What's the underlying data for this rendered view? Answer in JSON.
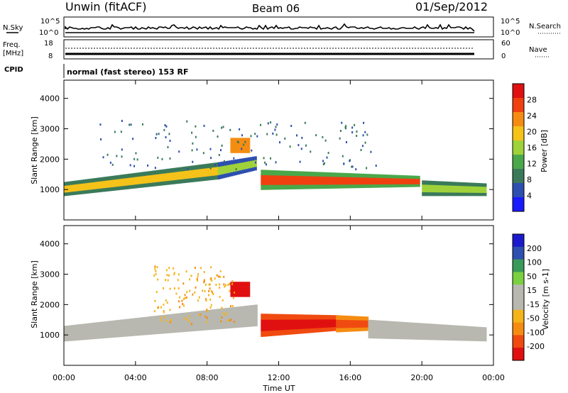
{
  "header": {
    "station": "Unwin (fitACF)",
    "beam": "Beam 06",
    "date": "01/Sep/2012"
  },
  "panels": {
    "nsky_label": "N.Sky",
    "nsky_ticks": [
      "10^5",
      "10^0"
    ],
    "nsearch_label": "N.Search",
    "nsearch_ticks": [
      "10^5",
      "10^0"
    ],
    "freq_label": "Freq.",
    "freq_unit": "[MHz]",
    "freq_ticks": [
      "18",
      "8"
    ],
    "nave_label": "Nave",
    "nave_ticks": [
      "60",
      "0"
    ],
    "cpid_label": "CPID",
    "cpid_text": "normal (fast stereo) 153 RF"
  },
  "colors": {
    "power_scale": [
      "#1a1aff",
      "#2d4fb0",
      "#3a7a5a",
      "#4aa84a",
      "#9fd23a",
      "#f5c21a",
      "#f58c12",
      "#f04010",
      "#e01010"
    ],
    "velocity_scale": [
      "#e01010",
      "#f04a10",
      "#f58c12",
      "#f5b41a",
      "#b8b8b0",
      "#b8b8b0",
      "#7ad040",
      "#3a9a5a",
      "#2d4fb0",
      "#1a1acc"
    ],
    "ground_scatter": "#b8b8b0"
  },
  "chart_data": [
    {
      "type": "heatmap",
      "title": "Power",
      "xlabel": "Time UT",
      "ylabel": "Slant Range [km]",
      "colorbar_label": "Power [dB]",
      "colorbar_ticks": [
        "28",
        "24",
        "20",
        "16",
        "12",
        "8",
        "4"
      ],
      "x_ticks": [
        "00:00",
        "04:00",
        "08:00",
        "12:00",
        "16:00",
        "20:00",
        "00:00"
      ],
      "y_ticks": [
        "4000",
        "3000",
        "2000",
        "1000"
      ],
      "xlim_hours": [
        0,
        24
      ],
      "ylim_km": [
        0,
        4600
      ],
      "features": [
        {
          "kind": "band",
          "t0": 0.0,
          "t1": 8.6,
          "r_lo0": 800,
          "r_lo1": 1350,
          "r_hi0": 1250,
          "r_hi1": 1900,
          "power_db": 24
        },
        {
          "kind": "band",
          "t0": 8.6,
          "t1": 10.7,
          "r_lo0": 1350,
          "r_lo1": 1650,
          "r_hi0": 1900,
          "r_hi1": 2100,
          "power_db": 18
        },
        {
          "kind": "patch",
          "t0": 9.3,
          "t1": 10.3,
          "r0": 2200,
          "r1": 2700,
          "power_db": 28
        },
        {
          "kind": "band",
          "t0": 11.0,
          "t1": 19.8,
          "r_lo0": 1000,
          "r_lo1": 1100,
          "r_hi0": 1650,
          "r_hi1": 1450,
          "power_db": 30
        },
        {
          "kind": "band",
          "t0": 20.0,
          "t1": 23.6,
          "r_lo0": 800,
          "r_lo1": 800,
          "r_hi0": 1300,
          "r_hi1": 1200,
          "power_db": 20
        },
        {
          "kind": "sparse",
          "t0": 2.0,
          "t1": 17.5,
          "r0": 1700,
          "r1": 3300,
          "power_db": 10
        }
      ]
    },
    {
      "type": "heatmap",
      "title": "Velocity",
      "xlabel": "Time UT",
      "ylabel": "Slant Range [km]",
      "colorbar_label": "Velocity [m s-1]",
      "colorbar_ticks": [
        "200",
        "100",
        "50",
        "15",
        "-15",
        "-50",
        "-100",
        "-200"
      ],
      "x_ticks": [
        "00:00",
        "04:00",
        "08:00",
        "12:00",
        "16:00",
        "20:00",
        "00:00"
      ],
      "y_ticks": [
        "4000",
        "3000",
        "2000",
        "1000"
      ],
      "xlim_hours": [
        0,
        24
      ],
      "ylim_km": [
        0,
        4600
      ],
      "features": [
        {
          "kind": "band",
          "t0": 0.0,
          "t1": 10.7,
          "r_lo0": 800,
          "r_lo1": 1300,
          "r_hi0": 1300,
          "r_hi1": 2000,
          "velocity": 0
        },
        {
          "kind": "patch",
          "t0": 9.3,
          "t1": 10.3,
          "r0": 2250,
          "r1": 2750,
          "velocity": -250
        },
        {
          "kind": "band",
          "t0": 11.0,
          "t1": 15.2,
          "r_lo0": 950,
          "r_lo1": 1150,
          "r_hi0": 1700,
          "r_hi1": 1650,
          "velocity": -200
        },
        {
          "kind": "band",
          "t0": 15.2,
          "t1": 17.0,
          "r_lo0": 1100,
          "r_lo1": 1150,
          "r_hi0": 1650,
          "r_hi1": 1600,
          "velocity": -100
        },
        {
          "kind": "band",
          "t0": 17.0,
          "t1": 23.6,
          "r_lo0": 900,
          "r_lo1": 800,
          "r_hi0": 1500,
          "r_hi1": 1250,
          "velocity": 0
        },
        {
          "kind": "sparse",
          "t0": 5.0,
          "t1": 9.5,
          "r0": 1400,
          "r1": 3300,
          "velocity": -30
        }
      ]
    }
  ]
}
